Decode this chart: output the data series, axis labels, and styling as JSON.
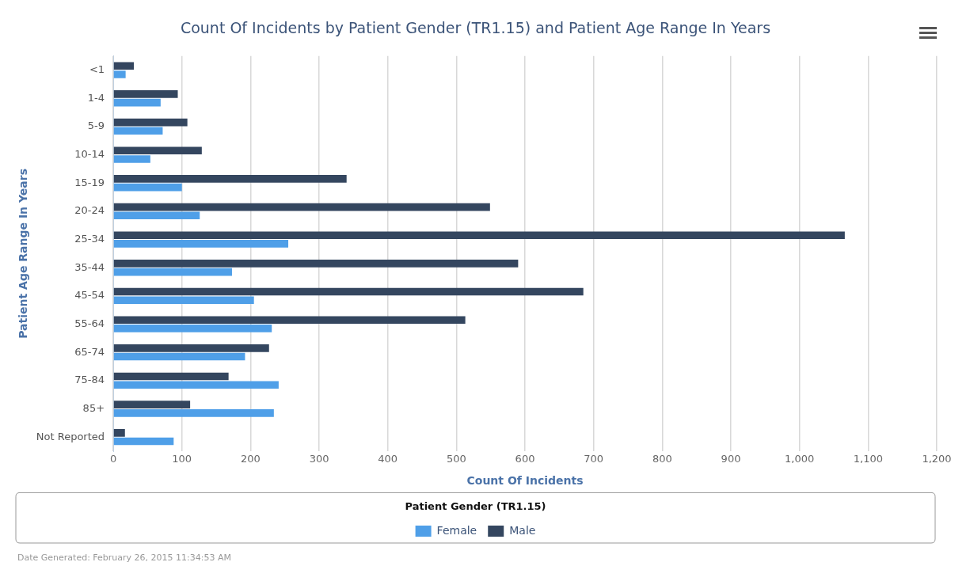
{
  "chart_data": {
    "type": "bar",
    "orientation": "horizontal",
    "title": "Count Of Incidents by Patient Gender (TR1.15) and Patient Age Range In Years",
    "xlabel": "Count Of Incidents",
    "ylabel": "Patient Age Range In Years",
    "legend_title": "Patient Gender (TR1.15)",
    "categories": [
      "<1",
      "1-4",
      "5-9",
      "10-14",
      "15-19",
      "20-24",
      "25-34",
      "35-44",
      "45-54",
      "55-64",
      "65-74",
      "75-84",
      "85+",
      "Not Reported"
    ],
    "series": [
      {
        "name": "Female",
        "color": "#4f9fe8",
        "values": [
          18,
          69,
          72,
          54,
          100,
          126,
          255,
          173,
          205,
          231,
          192,
          241,
          234,
          88
        ]
      },
      {
        "name": "Male",
        "color": "#34465f",
        "values": [
          30,
          94,
          108,
          129,
          340,
          549,
          1066,
          590,
          685,
          513,
          227,
          168,
          112,
          17
        ]
      }
    ],
    "xlim": [
      0,
      1200
    ],
    "xticks": [
      {
        "value": 0,
        "label": "0"
      },
      {
        "value": 100,
        "label": "100"
      },
      {
        "value": 200,
        "label": "200"
      },
      {
        "value": 300,
        "label": "300"
      },
      {
        "value": 400,
        "label": "400"
      },
      {
        "value": 500,
        "label": "500"
      },
      {
        "value": 600,
        "label": "600"
      },
      {
        "value": 700,
        "label": "700"
      },
      {
        "value": 800,
        "label": "800"
      },
      {
        "value": 900,
        "label": "900"
      },
      {
        "value": 1000,
        "label": "1,000"
      },
      {
        "value": 1100,
        "label": "1,100"
      },
      {
        "value": 1200,
        "label": "1,200"
      }
    ],
    "grid": "x",
    "legend": "bottom",
    "annotations": [
      "Date Generated: February 26, 2015 11:34:53 AM"
    ]
  }
}
